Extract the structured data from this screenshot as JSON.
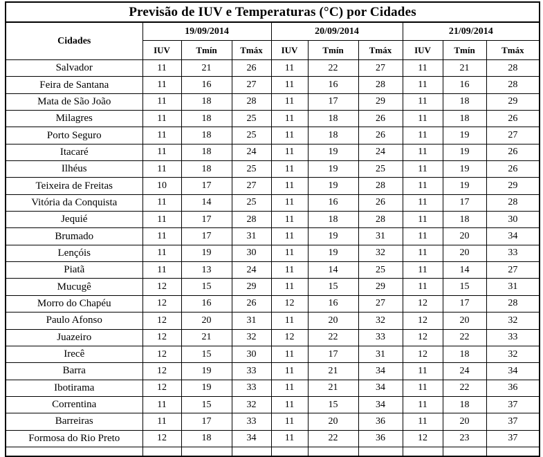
{
  "title": "Previsão de IUV e Temperaturas (°C) por Cidades",
  "table": {
    "city_column_header": "Cidades",
    "date_groups": [
      "19/09/2014",
      "20/09/2014",
      "21/09/2014"
    ],
    "sub_headers": [
      "IUV",
      "Tmín",
      "Tmáx"
    ],
    "rows": [
      {
        "city": "Salvador",
        "values": [
          11,
          21,
          26,
          11,
          22,
          27,
          11,
          21,
          28
        ]
      },
      {
        "city": "Feira de Santana",
        "values": [
          11,
          16,
          27,
          11,
          16,
          28,
          11,
          16,
          28
        ]
      },
      {
        "city": "Mata de São João",
        "values": [
          11,
          18,
          28,
          11,
          17,
          29,
          11,
          18,
          29
        ]
      },
      {
        "city": "Milagres",
        "values": [
          11,
          18,
          25,
          11,
          18,
          26,
          11,
          18,
          26
        ]
      },
      {
        "city": "Porto Seguro",
        "values": [
          11,
          18,
          25,
          11,
          18,
          26,
          11,
          19,
          27
        ]
      },
      {
        "city": "Itacaré",
        "values": [
          11,
          18,
          24,
          11,
          19,
          24,
          11,
          19,
          26
        ]
      },
      {
        "city": "Ilhéus",
        "values": [
          11,
          18,
          25,
          11,
          19,
          25,
          11,
          19,
          26
        ]
      },
      {
        "city": "Teixeira de Freitas",
        "values": [
          10,
          17,
          27,
          11,
          19,
          28,
          11,
          19,
          29
        ]
      },
      {
        "city": "Vitória da Conquista",
        "values": [
          11,
          14,
          25,
          11,
          16,
          26,
          11,
          17,
          28
        ]
      },
      {
        "city": "Jequié",
        "values": [
          11,
          17,
          28,
          11,
          18,
          28,
          11,
          18,
          30
        ]
      },
      {
        "city": "Brumado",
        "values": [
          11,
          17,
          31,
          11,
          19,
          31,
          11,
          20,
          34
        ]
      },
      {
        "city": "Lençóis",
        "values": [
          11,
          19,
          30,
          11,
          19,
          32,
          11,
          20,
          33
        ]
      },
      {
        "city": "Piatã",
        "values": [
          11,
          13,
          24,
          11,
          14,
          25,
          11,
          14,
          27
        ]
      },
      {
        "city": "Mucugê",
        "values": [
          12,
          15,
          29,
          11,
          15,
          29,
          11,
          15,
          31
        ]
      },
      {
        "city": "Morro do Chapéu",
        "values": [
          12,
          16,
          26,
          12,
          16,
          27,
          12,
          17,
          28
        ]
      },
      {
        "city": "Paulo Afonso",
        "values": [
          12,
          20,
          31,
          11,
          20,
          32,
          12,
          20,
          32
        ]
      },
      {
        "city": "Juazeiro",
        "values": [
          12,
          21,
          32,
          12,
          22,
          33,
          12,
          22,
          33
        ]
      },
      {
        "city": "Irecê",
        "values": [
          12,
          15,
          30,
          11,
          17,
          31,
          12,
          18,
          32
        ]
      },
      {
        "city": "Barra",
        "values": [
          12,
          19,
          33,
          11,
          21,
          34,
          11,
          24,
          34
        ]
      },
      {
        "city": "Ibotirama",
        "values": [
          12,
          19,
          33,
          11,
          21,
          34,
          11,
          22,
          36
        ]
      },
      {
        "city": "Correntina",
        "values": [
          11,
          15,
          32,
          11,
          15,
          34,
          11,
          18,
          37
        ]
      },
      {
        "city": "Barreiras",
        "values": [
          11,
          17,
          33,
          11,
          20,
          36,
          11,
          20,
          37
        ]
      },
      {
        "city": "Formosa do Rio Preto",
        "values": [
          12,
          18,
          34,
          11,
          22,
          36,
          12,
          23,
          37
        ]
      }
    ]
  }
}
